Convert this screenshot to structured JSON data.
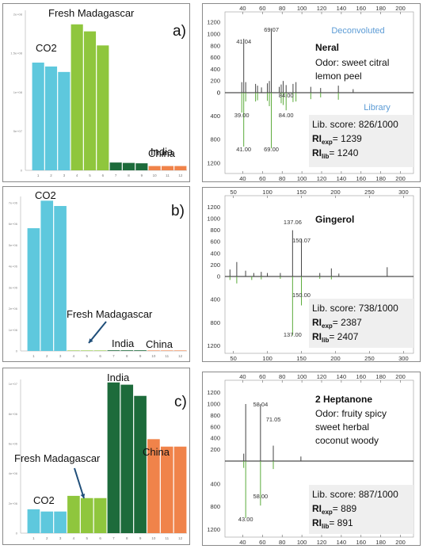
{
  "bar_panels": [
    {
      "tag": "a)",
      "y_ticks": [
        "0",
        "5e+07",
        "1e+08",
        "1.5e+08",
        "2e+08"
      ],
      "groups": [
        {
          "label": "CO2"
        },
        {
          "label": "Fresh Madagascar"
        },
        {
          "label": "India"
        },
        {
          "label": "China"
        }
      ]
    },
    {
      "tag": "b)",
      "y_ticks": [
        "0",
        "1e+06",
        "2e+06",
        "3e+06",
        "4e+06",
        "5e+06",
        "6e+06",
        "7e+06"
      ],
      "groups": [
        {
          "label": "CO2"
        },
        {
          "label": "Fresh Madagascar"
        },
        {
          "label": "India"
        },
        {
          "label": "China"
        }
      ]
    },
    {
      "tag": "c)",
      "y_ticks": [
        "0",
        "2e+06",
        "4e+06",
        "6e+06",
        "8e+06",
        "1e+07"
      ],
      "groups": [
        {
          "label": "India"
        },
        {
          "label": "Fresh Madagascar"
        },
        {
          "label": "CO2"
        },
        {
          "label": "China"
        }
      ]
    }
  ],
  "spectra_panels": [
    {
      "compound": "Neral",
      "odor_lines": [
        "Odor: sweet citral",
        "lemon peel"
      ],
      "deconvoluted_label": "Deconvoluted",
      "library_label": "Library",
      "lib_score": "Lib. score: 826/1000",
      "ri_exp": "= 1239",
      "ri_lib": "= 1240",
      "x_ticks": [
        "40",
        "60",
        "80",
        "100",
        "120",
        "140",
        "160",
        "180",
        "200"
      ],
      "y_ticks_top": [
        "1200",
        "1000",
        "800",
        "600",
        "400",
        "200",
        "0"
      ],
      "y_ticks_bottom": [
        "0",
        "400",
        "800",
        "1200"
      ],
      "peak_labels_top": [
        "41.04",
        "69.07",
        "84.00"
      ],
      "peak_labels_bottom": [
        "39.00",
        "41.00",
        "69.00",
        "84.00"
      ]
    },
    {
      "compound": "Gingerol",
      "odor_lines": [],
      "deconvoluted_label": "",
      "library_label": "",
      "lib_score": "Lib. score: 738/1000",
      "ri_exp": "= 2387",
      "ri_lib": "= 2407",
      "x_ticks": [
        "50",
        "100",
        "150",
        "200",
        "250",
        "300"
      ],
      "y_ticks_top": [
        "1200",
        "1000",
        "800",
        "600",
        "400",
        "200",
        "0"
      ],
      "y_ticks_bottom": [
        "400",
        "800",
        "1200"
      ],
      "peak_labels_top": [
        "137.06",
        "150.07"
      ],
      "peak_labels_bottom": [
        "150.00",
        "137.00"
      ]
    },
    {
      "compound": "2 Heptanone",
      "odor_lines": [
        "Odor: fruity spicy",
        "sweet herbal",
        "coconut woody"
      ],
      "deconvoluted_label": "",
      "library_label": "",
      "lib_score": "Lib. score: 887/1000",
      "ri_exp": "= 889",
      "ri_lib": "= 891",
      "x_ticks": [
        "40",
        "60",
        "80",
        "100",
        "120",
        "140",
        "160",
        "180",
        "200"
      ],
      "y_ticks_top": [
        "1200",
        "1000",
        "800",
        "600",
        "400",
        "200"
      ],
      "y_ticks_bottom": [
        "400",
        "800",
        "1200"
      ],
      "peak_labels_top": [
        "58.04",
        "71.05"
      ],
      "peak_labels_bottom": [
        "58.00",
        "43.00"
      ]
    }
  ],
  "ri_symbol": "RI",
  "ri_exp_sub": "exp",
  "ri_lib_sub": "lib",
  "colors": {
    "co2": "#5ec8dd",
    "fresh": "#8fc63d",
    "india": "#1d6b3b",
    "china": "#f0834a",
    "deconv": "#444444",
    "library": "#5aaa3a",
    "accent_blue": "#5b9bd5",
    "info_box": "#efefef"
  },
  "chart_data": [
    {
      "type": "bar",
      "title": "a)",
      "categories": [
        "1",
        "2",
        "3",
        "4",
        "5",
        "6",
        "7",
        "8",
        "9",
        "10",
        "11",
        "12"
      ],
      "values": [
        138000000.0,
        133000000.0,
        126000000.0,
        187000000.0,
        178000000.0,
        160000000.0,
        10000000.0,
        9500000.0,
        9000000.0,
        5500000.0,
        5500000.0,
        5500000.0
      ],
      "bar_groups": [
        "CO2",
        "CO2",
        "CO2",
        "Fresh Madagascar",
        "Fresh Madagascar",
        "Fresh Madagascar",
        "India",
        "India",
        "India",
        "China",
        "China",
        "China"
      ],
      "ylim": [
        0,
        205000000.0
      ],
      "grid": false
    },
    {
      "type": "bar",
      "title": "b)",
      "categories": [
        "1",
        "2",
        "3",
        "4",
        "5",
        "6",
        "7",
        "8",
        "9",
        "10",
        "11",
        "12"
      ],
      "values": [
        5800000.0,
        7100000.0,
        6850000.0,
        20000,
        20000,
        20000,
        30000,
        30000,
        30000,
        8000,
        8000,
        8000
      ],
      "bar_groups": [
        "CO2",
        "CO2",
        "CO2",
        "Fresh Madagascar",
        "Fresh Madagascar",
        "Fresh Madagascar",
        "India",
        "India",
        "India",
        "China",
        "China",
        "China"
      ],
      "ylim": [
        0,
        7300000.0
      ],
      "grid": false
    },
    {
      "type": "bar",
      "title": "c)",
      "categories": [
        "1",
        "2",
        "3",
        "4",
        "5",
        "6",
        "7",
        "8",
        "9",
        "10",
        "11",
        "12"
      ],
      "values": [
        1600000.0,
        1450000.0,
        1450000.0,
        2500000.0,
        2350000.0,
        2350000.0,
        10100000.0,
        9950000.0,
        9200000.0,
        6300000.0,
        5800000.0,
        5800000.0
      ],
      "bar_groups": [
        "CO2",
        "CO2",
        "CO2",
        "Fresh Madagascar",
        "Fresh Madagascar",
        "Fresh Madagascar",
        "India",
        "India",
        "India",
        "China",
        "China",
        "China"
      ],
      "ylim": [
        0,
        10300000.0
      ],
      "grid": false
    },
    {
      "type": "bar",
      "title": "Neral",
      "xlim": [
        30,
        210
      ],
      "ylim": [
        -1300,
        1300
      ],
      "series": [
        {
          "name": "Deconvoluted",
          "x": [
            39,
            41,
            43,
            53,
            55,
            59,
            65,
            67,
            69,
            77,
            79,
            81,
            84,
            91,
            94,
            109,
            119,
            137,
            152
          ],
          "values": [
            180,
            920,
            180,
            150,
            120,
            90,
            160,
            200,
            1100,
            100,
            140,
            200,
            130,
            150,
            180,
            100,
            80,
            120,
            60
          ]
        },
        {
          "name": "Library",
          "x": [
            39,
            41,
            43,
            53,
            55,
            65,
            67,
            69,
            79,
            81,
            84,
            91,
            94,
            109,
            119,
            137
          ],
          "values": [
            -340,
            -920,
            -150,
            -150,
            -130,
            -140,
            -230,
            -950,
            -180,
            -210,
            -300,
            -160,
            -150,
            -110,
            -80,
            -120
          ]
        }
      ]
    },
    {
      "type": "bar",
      "title": "Gingerol",
      "xlim": [
        40,
        310
      ],
      "ylim": [
        -1300,
        1300
      ],
      "series": [
        {
          "name": "Deconvoluted",
          "x": [
            45,
            55,
            68,
            80,
            91,
            100,
            119,
            137,
            150,
            177,
            194,
            205,
            276
          ],
          "values": [
            120,
            250,
            100,
            60,
            80,
            60,
            60,
            800,
            650,
            60,
            140,
            50,
            160
          ]
        },
        {
          "name": "Library",
          "x": [
            45,
            55,
            77,
            91,
            119,
            137,
            150,
            177,
            194
          ],
          "values": [
            -60,
            -120,
            -60,
            -50,
            -40,
            -1020,
            -500,
            -40,
            -50
          ]
        }
      ]
    },
    {
      "type": "bar",
      "title": "2 Heptanone",
      "xlim": [
        30,
        210
      ],
      "ylim": [
        -1300,
        1300
      ],
      "series": [
        {
          "name": "Deconvoluted",
          "x": [
            41,
            43,
            58,
            71,
            99
          ],
          "values": [
            130,
            1000,
            1000,
            270,
            80
          ]
        },
        {
          "name": "Library",
          "x": [
            41,
            43,
            58,
            71
          ],
          "values": [
            -120,
            -1000,
            -780,
            -140
          ]
        }
      ]
    }
  ]
}
